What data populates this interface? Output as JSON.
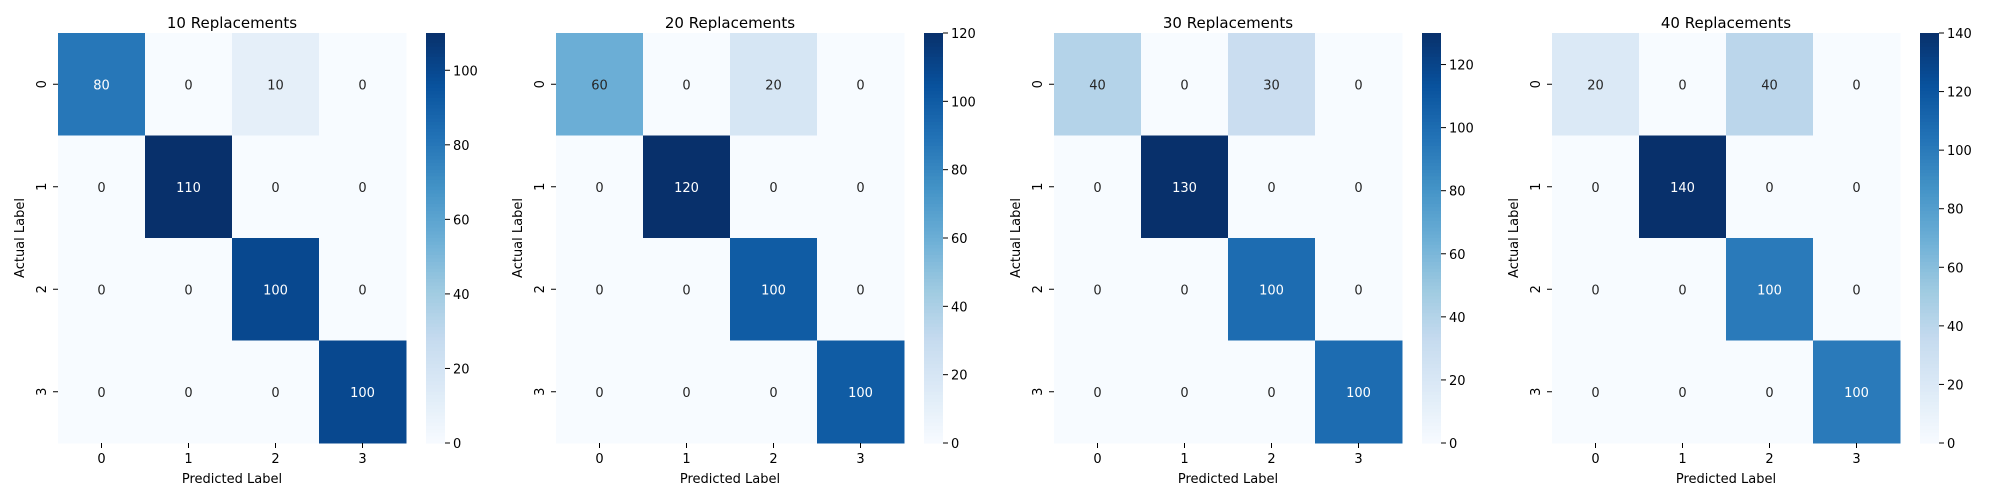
{
  "chart_data": [
    {
      "type": "heatmap",
      "title": "10 Replacements",
      "xlabel": "Predicted Label",
      "ylabel": "Actual Label",
      "x_categories": [
        "0",
        "1",
        "2",
        "3"
      ],
      "y_categories": [
        "0",
        "1",
        "2",
        "3"
      ],
      "values": [
        [
          80,
          0,
          10,
          0
        ],
        [
          0,
          110,
          0,
          0
        ],
        [
          0,
          0,
          100,
          0
        ],
        [
          0,
          0,
          0,
          100
        ]
      ],
      "colorbar_range": [
        0,
        110
      ],
      "colorbar_ticks": [
        0,
        20,
        40,
        60,
        80,
        100
      ],
      "colormap": "Blues"
    },
    {
      "type": "heatmap",
      "title": "20 Replacements",
      "xlabel": "Predicted Label",
      "ylabel": "Actual Label",
      "x_categories": [
        "0",
        "1",
        "2",
        "3"
      ],
      "y_categories": [
        "0",
        "1",
        "2",
        "3"
      ],
      "values": [
        [
          60,
          0,
          20,
          0
        ],
        [
          0,
          120,
          0,
          0
        ],
        [
          0,
          0,
          100,
          0
        ],
        [
          0,
          0,
          0,
          100
        ]
      ],
      "colorbar_range": [
        0,
        120
      ],
      "colorbar_ticks": [
        0,
        20,
        40,
        60,
        80,
        100,
        120
      ],
      "colormap": "Blues"
    },
    {
      "type": "heatmap",
      "title": "30 Replacements",
      "xlabel": "Predicted Label",
      "ylabel": "Actual Label",
      "x_categories": [
        "0",
        "1",
        "2",
        "3"
      ],
      "y_categories": [
        "0",
        "1",
        "2",
        "3"
      ],
      "values": [
        [
          40,
          0,
          30,
          0
        ],
        [
          0,
          130,
          0,
          0
        ],
        [
          0,
          0,
          100,
          0
        ],
        [
          0,
          0,
          0,
          100
        ]
      ],
      "colorbar_range": [
        0,
        130
      ],
      "colorbar_ticks": [
        0,
        20,
        40,
        60,
        80,
        100,
        120
      ],
      "colormap": "Blues"
    },
    {
      "type": "heatmap",
      "title": "40 Replacements",
      "xlabel": "Predicted Label",
      "ylabel": "Actual Label",
      "x_categories": [
        "0",
        "1",
        "2",
        "3"
      ],
      "y_categories": [
        "0",
        "1",
        "2",
        "3"
      ],
      "values": [
        [
          20,
          0,
          40,
          0
        ],
        [
          0,
          140,
          0,
          0
        ],
        [
          0,
          0,
          100,
          0
        ],
        [
          0,
          0,
          0,
          100
        ]
      ],
      "colorbar_range": [
        0,
        140
      ],
      "colorbar_ticks": [
        0,
        20,
        40,
        60,
        80,
        100,
        120,
        140
      ],
      "colormap": "Blues"
    }
  ]
}
